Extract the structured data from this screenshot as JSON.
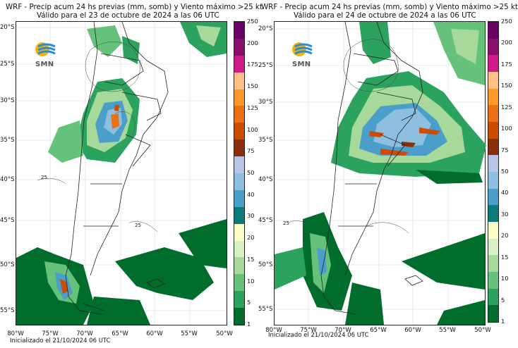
{
  "panels": [
    {
      "title_line1": "WRF - Precip acum 24 hs previas (mm, somb) y Viento máximo >25 kt",
      "title_line2": "Válido para el 23 de octubre de 2024 a las 06 UTC",
      "init": "Inicializado el 21/10/2024 06 UTC",
      "logo_text": "SMN",
      "contour_label": "25"
    },
    {
      "title_line1": "WRF - Precip acum 24 hs previas (mm, somb) y Viento máximo >25 kt",
      "title_line2": "Válido para el 24 de octubre de 2024 a las 06 UTC",
      "init": "Inicializado el 21/10/2024 06 UTC",
      "logo_text": "SMN",
      "contour_label": "25"
    }
  ],
  "lat_labels": [
    "20°S",
    "25°S",
    "30°S",
    "35°S",
    "40°S",
    "45°S",
    "50°S",
    "55°S"
  ],
  "lon_labels": [
    "80°W",
    "75°W",
    "70°W",
    "65°W",
    "60°W",
    "55°W",
    "50°W"
  ],
  "colorbar": {
    "levels": [
      "1",
      "5",
      "10",
      "15",
      "20",
      "30",
      "40",
      "50",
      "75",
      "100",
      "125",
      "150",
      "175",
      "200",
      "250"
    ],
    "colors": [
      "#006d2c",
      "#2ca25f",
      "#66c27a",
      "#a6d99a",
      "#d9f0c4",
      "#fefec8",
      "#0d7a7a",
      "#4a9ec9",
      "#8fbfe0",
      "#b9c5e6",
      "#8a2f0b",
      "#cc4c02",
      "#ec7014",
      "#fe9929",
      "#fec086",
      "#d01c8b",
      "#8a0e6b",
      "#6a0066"
    ]
  },
  "icons": [
    "smn-logo-icon"
  ]
}
